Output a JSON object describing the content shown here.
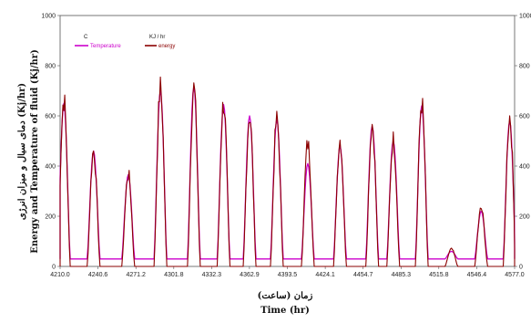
{
  "chart_data": {
    "type": "line",
    "xlabel_fa": "زمان (ساعت)",
    "xlabel_en": "Time (hr)",
    "ylabel_fa": "دمای سیال و میزان انرژی  (Kj/hr)",
    "ylabel_en": "Energy and Temperature of fluid (Kj/hr)",
    "left_unit": "C",
    "right_unit": "KJ / hr",
    "xlim": [
      4210.0,
      4577.0
    ],
    "ylim": [
      0,
      1000
    ],
    "yticks": [
      "0",
      "200",
      "400",
      "600",
      "800",
      "1000"
    ],
    "right_yticks": [
      "0",
      "200",
      "400",
      "600",
      "800",
      "1000"
    ],
    "xticks": [
      {
        "value": 4210.0,
        "label": "4210.0"
      },
      {
        "value": 4240.6,
        "label": "4240.6"
      },
      {
        "value": 4271.2,
        "label": "4271.2"
      },
      {
        "value": 4301.8,
        "label": "4301.8"
      },
      {
        "value": 4332.3,
        "label": "4332.3"
      },
      {
        "value": 4362.9,
        "label": "4362.9"
      },
      {
        "value": 4393.5,
        "label": "4393.5"
      },
      {
        "value": 4424.1,
        "label": "4424.1"
      },
      {
        "value": 4454.7,
        "label": "4454.7"
      },
      {
        "value": 4485.3,
        "label": "4485.3"
      },
      {
        "value": 4515.8,
        "label": "4515.8"
      },
      {
        "value": 4546.4,
        "label": "4546.4"
      },
      {
        "value": 4577.0,
        "label": "4577.0"
      }
    ],
    "grid": false,
    "legend": "top-left",
    "series": [
      {
        "name": "Temperature",
        "color": "#cc00cc",
        "baseline": 30,
        "peaks": [
          {
            "x": 4213.0,
            "y": 650
          },
          {
            "x": 4237.0,
            "y": 460
          },
          {
            "x": 4265.0,
            "y": 365
          },
          {
            "x": 4291.0,
            "y": 700
          },
          {
            "x": 4318.0,
            "y": 715
          },
          {
            "x": 4342.0,
            "y": 645
          },
          {
            "x": 4363.0,
            "y": 600
          },
          {
            "x": 4385.0,
            "y": 585
          },
          {
            "x": 4410.0,
            "y": 410
          },
          {
            "x": 4436.0,
            "y": 480
          },
          {
            "x": 4462.0,
            "y": 560
          },
          {
            "x": 4479.0,
            "y": 500
          },
          {
            "x": 4502.0,
            "y": 640
          },
          {
            "x": 4526.0,
            "y": 60
          },
          {
            "x": 4550.0,
            "y": 220
          },
          {
            "x": 4573.0,
            "y": 580
          }
        ]
      },
      {
        "name": "energy",
        "color": "#8b0000",
        "baseline": 0,
        "peaks": [
          {
            "x": 4213.0,
            "y": 680
          },
          {
            "x": 4237.0,
            "y": 470
          },
          {
            "x": 4265.0,
            "y": 375
          },
          {
            "x": 4291.0,
            "y": 725
          },
          {
            "x": 4318.0,
            "y": 725
          },
          {
            "x": 4342.0,
            "y": 665
          },
          {
            "x": 4363.0,
            "y": 615
          },
          {
            "x": 4385.0,
            "y": 595
          },
          {
            "x": 4410.0,
            "y": 500
          },
          {
            "x": 4436.0,
            "y": 515
          },
          {
            "x": 4462.0,
            "y": 580
          },
          {
            "x": 4479.0,
            "y": 515
          },
          {
            "x": 4502.0,
            "y": 665
          },
          {
            "x": 4526.0,
            "y": 70
          },
          {
            "x": 4550.0,
            "y": 235
          },
          {
            "x": 4573.0,
            "y": 610
          }
        ]
      }
    ]
  }
}
